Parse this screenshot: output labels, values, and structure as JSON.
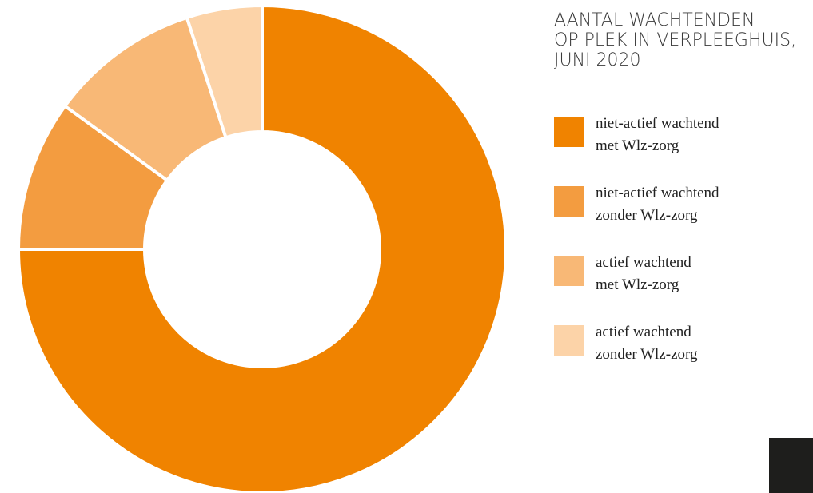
{
  "chart_data": {
    "type": "pie",
    "title": [
      "AANTAL WACHTENDEN",
      "OP PLEK IN VERPLEEGHUIS,",
      "JUNI 2020"
    ],
    "categories": [
      [
        "niet-actief wachtend",
        "met Wlz-zorg"
      ],
      [
        "niet-actief wachtend",
        "zonder Wlz-zorg"
      ],
      [
        "actief wachtend",
        "met Wlz-zorg"
      ],
      [
        "actief wachtend",
        "zonder Wlz-zorg"
      ]
    ],
    "values": [
      75,
      10,
      10,
      5
    ],
    "colors": [
      "#f08300",
      "#f39c40",
      "#f8b876",
      "#fcd3a8"
    ]
  }
}
